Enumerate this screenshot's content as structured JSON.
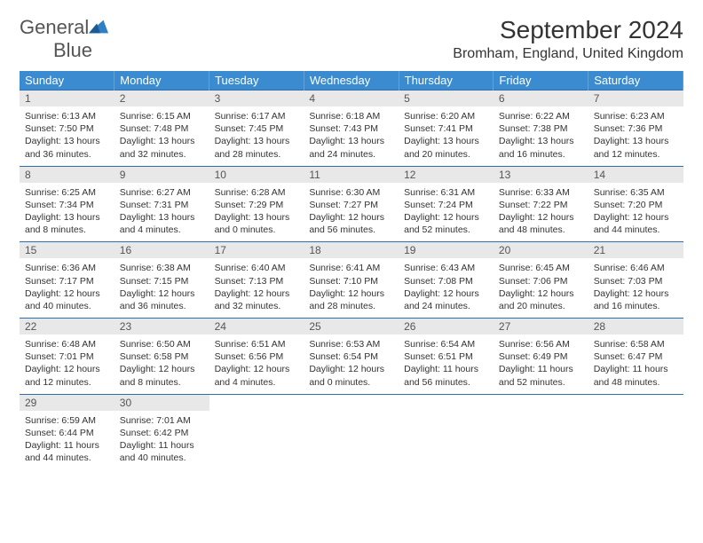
{
  "brand": {
    "name_a": "General",
    "name_b": "Blue"
  },
  "title": "September 2024",
  "location": "Bromham, England, United Kingdom",
  "colors": {
    "header_bg": "#3a8bcf",
    "header_text": "#ffffff",
    "daynum_bg": "#e8e8e8",
    "daynum_text": "#555555",
    "rule": "#2f6ea8",
    "body_text": "#333333",
    "brand_gray": "#555555",
    "brand_blue": "#2f7fc2"
  },
  "day_headers": [
    "Sunday",
    "Monday",
    "Tuesday",
    "Wednesday",
    "Thursday",
    "Friday",
    "Saturday"
  ],
  "weeks": [
    [
      {
        "n": "1",
        "sr": "6:13 AM",
        "ss": "7:50 PM",
        "dl": "13 hours and 36 minutes."
      },
      {
        "n": "2",
        "sr": "6:15 AM",
        "ss": "7:48 PM",
        "dl": "13 hours and 32 minutes."
      },
      {
        "n": "3",
        "sr": "6:17 AM",
        "ss": "7:45 PM",
        "dl": "13 hours and 28 minutes."
      },
      {
        "n": "4",
        "sr": "6:18 AM",
        "ss": "7:43 PM",
        "dl": "13 hours and 24 minutes."
      },
      {
        "n": "5",
        "sr": "6:20 AM",
        "ss": "7:41 PM",
        "dl": "13 hours and 20 minutes."
      },
      {
        "n": "6",
        "sr": "6:22 AM",
        "ss": "7:38 PM",
        "dl": "13 hours and 16 minutes."
      },
      {
        "n": "7",
        "sr": "6:23 AM",
        "ss": "7:36 PM",
        "dl": "13 hours and 12 minutes."
      }
    ],
    [
      {
        "n": "8",
        "sr": "6:25 AM",
        "ss": "7:34 PM",
        "dl": "13 hours and 8 minutes."
      },
      {
        "n": "9",
        "sr": "6:27 AM",
        "ss": "7:31 PM",
        "dl": "13 hours and 4 minutes."
      },
      {
        "n": "10",
        "sr": "6:28 AM",
        "ss": "7:29 PM",
        "dl": "13 hours and 0 minutes."
      },
      {
        "n": "11",
        "sr": "6:30 AM",
        "ss": "7:27 PM",
        "dl": "12 hours and 56 minutes."
      },
      {
        "n": "12",
        "sr": "6:31 AM",
        "ss": "7:24 PM",
        "dl": "12 hours and 52 minutes."
      },
      {
        "n": "13",
        "sr": "6:33 AM",
        "ss": "7:22 PM",
        "dl": "12 hours and 48 minutes."
      },
      {
        "n": "14",
        "sr": "6:35 AM",
        "ss": "7:20 PM",
        "dl": "12 hours and 44 minutes."
      }
    ],
    [
      {
        "n": "15",
        "sr": "6:36 AM",
        "ss": "7:17 PM",
        "dl": "12 hours and 40 minutes."
      },
      {
        "n": "16",
        "sr": "6:38 AM",
        "ss": "7:15 PM",
        "dl": "12 hours and 36 minutes."
      },
      {
        "n": "17",
        "sr": "6:40 AM",
        "ss": "7:13 PM",
        "dl": "12 hours and 32 minutes."
      },
      {
        "n": "18",
        "sr": "6:41 AM",
        "ss": "7:10 PM",
        "dl": "12 hours and 28 minutes."
      },
      {
        "n": "19",
        "sr": "6:43 AM",
        "ss": "7:08 PM",
        "dl": "12 hours and 24 minutes."
      },
      {
        "n": "20",
        "sr": "6:45 AM",
        "ss": "7:06 PM",
        "dl": "12 hours and 20 minutes."
      },
      {
        "n": "21",
        "sr": "6:46 AM",
        "ss": "7:03 PM",
        "dl": "12 hours and 16 minutes."
      }
    ],
    [
      {
        "n": "22",
        "sr": "6:48 AM",
        "ss": "7:01 PM",
        "dl": "12 hours and 12 minutes."
      },
      {
        "n": "23",
        "sr": "6:50 AM",
        "ss": "6:58 PM",
        "dl": "12 hours and 8 minutes."
      },
      {
        "n": "24",
        "sr": "6:51 AM",
        "ss": "6:56 PM",
        "dl": "12 hours and 4 minutes."
      },
      {
        "n": "25",
        "sr": "6:53 AM",
        "ss": "6:54 PM",
        "dl": "12 hours and 0 minutes."
      },
      {
        "n": "26",
        "sr": "6:54 AM",
        "ss": "6:51 PM",
        "dl": "11 hours and 56 minutes."
      },
      {
        "n": "27",
        "sr": "6:56 AM",
        "ss": "6:49 PM",
        "dl": "11 hours and 52 minutes."
      },
      {
        "n": "28",
        "sr": "6:58 AM",
        "ss": "6:47 PM",
        "dl": "11 hours and 48 minutes."
      }
    ],
    [
      {
        "n": "29",
        "sr": "6:59 AM",
        "ss": "6:44 PM",
        "dl": "11 hours and 44 minutes."
      },
      {
        "n": "30",
        "sr": "7:01 AM",
        "ss": "6:42 PM",
        "dl": "11 hours and 40 minutes."
      },
      null,
      null,
      null,
      null,
      null
    ]
  ],
  "labels": {
    "sunrise": "Sunrise:",
    "sunset": "Sunset:",
    "daylight": "Daylight:"
  }
}
